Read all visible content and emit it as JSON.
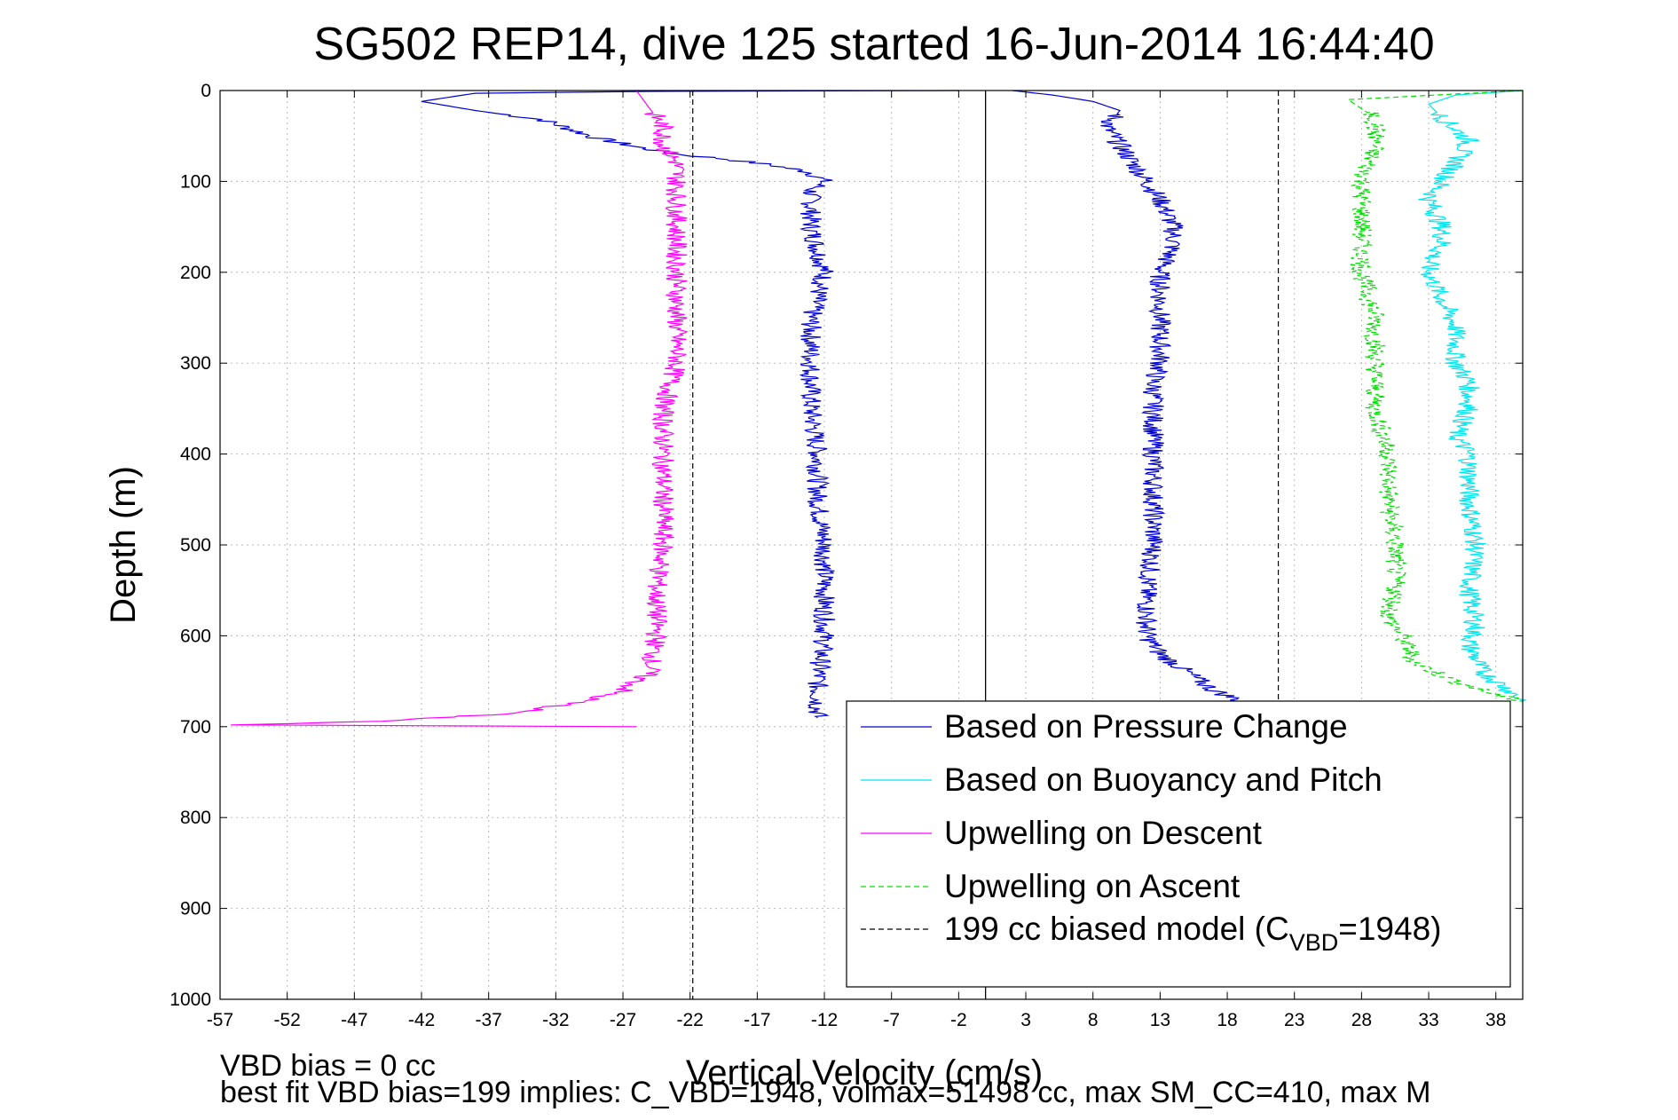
{
  "chart_data": {
    "type": "line",
    "title": "SG502 REP14, dive 125 started 16-Jun-2014 16:44:40",
    "xlabel": "Vertical Velocity (cm/s)",
    "ylabel": "Depth (m)",
    "xlim": [
      -57,
      40
    ],
    "ylim": [
      1000,
      0
    ],
    "y_reversed": true,
    "grid": true,
    "legend_position": "bottom-right",
    "x_ticks": [
      -57,
      -52,
      -47,
      -42,
      -37,
      -32,
      -27,
      -22,
      -17,
      -12,
      -7,
      -2,
      3,
      8,
      13,
      18,
      23,
      28,
      33,
      38
    ],
    "y_ticks": [
      0,
      100,
      200,
      300,
      400,
      500,
      600,
      700,
      800,
      900,
      1000
    ],
    "series": [
      {
        "name": "Based on Pressure Change",
        "color": "#0000cc",
        "style": "solid",
        "points": [
          [
            -2,
            0
          ],
          [
            -25,
            1
          ],
          [
            -38,
            3
          ],
          [
            -42,
            12
          ],
          [
            -38,
            22
          ],
          [
            -33,
            32
          ],
          [
            -31,
            42
          ],
          [
            -29,
            52
          ],
          [
            -26,
            62
          ],
          [
            -23,
            70
          ],
          [
            -19,
            76
          ],
          [
            -16,
            82
          ],
          [
            -13,
            90
          ],
          [
            -12,
            100
          ],
          [
            -13,
            110
          ],
          [
            -13,
            150
          ],
          [
            -12,
            200
          ],
          [
            -13,
            250
          ],
          [
            -13,
            300
          ],
          [
            -13,
            350
          ],
          [
            -12.5,
            400
          ],
          [
            -12.5,
            450
          ],
          [
            -12,
            500
          ],
          [
            -12,
            550
          ],
          [
            -12,
            600
          ],
          [
            -12.5,
            650
          ],
          [
            -12.5,
            690
          ]
        ]
      },
      {
        "name": "Based on Pressure Change",
        "color": "#0000cc",
        "style": "solid",
        "points": [
          [
            2,
            0
          ],
          [
            5,
            5
          ],
          [
            8,
            12
          ],
          [
            10,
            22
          ],
          [
            9,
            40
          ],
          [
            10,
            60
          ],
          [
            11,
            80
          ],
          [
            12,
            100
          ],
          [
            13,
            120
          ],
          [
            14,
            150
          ],
          [
            14,
            170
          ],
          [
            13,
            200
          ],
          [
            13,
            250
          ],
          [
            13,
            300
          ],
          [
            12.5,
            320
          ],
          [
            12.5,
            400
          ],
          [
            12.5,
            500
          ],
          [
            12,
            550
          ],
          [
            12,
            600
          ],
          [
            13,
            620
          ],
          [
            15,
            640
          ],
          [
            17,
            660
          ],
          [
            20,
            678
          ]
        ]
      },
      {
        "name": "Based on Buoyancy and Pitch",
        "color": "#00e5ee",
        "style": "solid",
        "points": [
          [
            40,
            0
          ],
          [
            35,
            5
          ],
          [
            33,
            15
          ],
          [
            34,
            30
          ],
          [
            36,
            55
          ],
          [
            35,
            80
          ],
          [
            34,
            100
          ],
          [
            33,
            120
          ],
          [
            34,
            150
          ],
          [
            34,
            170
          ],
          [
            33,
            190
          ],
          [
            33,
            200
          ],
          [
            34,
            230
          ],
          [
            35,
            260
          ],
          [
            35,
            300
          ],
          [
            36,
            320
          ],
          [
            36,
            350
          ],
          [
            35,
            380
          ],
          [
            36,
            400
          ],
          [
            36,
            450
          ],
          [
            36.5,
            500
          ],
          [
            36,
            550
          ],
          [
            36.5,
            590
          ],
          [
            36,
            610
          ],
          [
            37,
            640
          ],
          [
            39,
            660
          ],
          [
            40,
            672
          ]
        ]
      },
      {
        "name": "Upwelling on Descent",
        "color": "#ff00ff",
        "style": "solid",
        "points": [
          [
            -26,
            0
          ],
          [
            -25,
            20
          ],
          [
            -24,
            40
          ],
          [
            -24,
            60
          ],
          [
            -23,
            80
          ],
          [
            -23,
            100
          ],
          [
            -23,
            150
          ],
          [
            -23,
            200
          ],
          [
            -23,
            250
          ],
          [
            -23,
            300
          ],
          [
            -24,
            350
          ],
          [
            -24,
            400
          ],
          [
            -24,
            450
          ],
          [
            -24,
            500
          ],
          [
            -24.5,
            550
          ],
          [
            -24.5,
            600
          ],
          [
            -25,
            640
          ],
          [
            -27,
            660
          ],
          [
            -30,
            672
          ],
          [
            -35,
            685
          ],
          [
            -45,
            694
          ],
          [
            -56,
            698
          ],
          [
            -26,
            700
          ]
        ]
      },
      {
        "name": "Upwelling on Ascent",
        "color": "#00dd00",
        "style": "dashed",
        "points": [
          [
            40,
            0
          ],
          [
            27,
            10
          ],
          [
            29,
            30
          ],
          [
            29,
            60
          ],
          [
            28,
            100
          ],
          [
            28,
            150
          ],
          [
            28,
            200
          ],
          [
            29,
            250
          ],
          [
            29,
            300
          ],
          [
            29,
            350
          ],
          [
            30,
            400
          ],
          [
            30,
            450
          ],
          [
            30.5,
            500
          ],
          [
            30.5,
            550
          ],
          [
            30,
            580
          ],
          [
            31,
            600
          ],
          [
            32,
            630
          ],
          [
            35,
            650
          ],
          [
            38,
            665
          ],
          [
            40,
            672
          ]
        ]
      },
      {
        "name": "199 cc biased model (C_VBD=1948)",
        "color": "#000000",
        "style": "dashed",
        "points": [
          [
            -21.8,
            0
          ],
          [
            -21.8,
            1000
          ]
        ]
      },
      {
        "name": "199 cc biased model (C_VBD=1948)",
        "color": "#000000",
        "style": "dashed",
        "points": [
          [
            21.8,
            0
          ],
          [
            21.8,
            680
          ]
        ]
      }
    ],
    "zero_line": {
      "x": 0,
      "color": "#000000"
    },
    "legend": [
      {
        "label": "Based on Pressure Change",
        "color": "#0000cc",
        "style": "solid"
      },
      {
        "label": "Based on Buoyancy and Pitch",
        "color": "#00e5ee",
        "style": "solid"
      },
      {
        "label": "Upwelling on Descent",
        "color": "#ff00ff",
        "style": "solid"
      },
      {
        "label": "Upwelling on Ascent",
        "color": "#00dd00",
        "style": "dashed"
      },
      {
        "label_main": "199 cc biased model (C",
        "label_sub": "VBD",
        "label_end": "=1948)",
        "color": "#000000",
        "style": "dashed"
      }
    ]
  },
  "footer": {
    "line1": "VBD bias = 0 cc",
    "line2": "best fit VBD bias=199 implies: C_VBD=1948, volmax=51498 cc, max SM_CC=410, max M"
  }
}
